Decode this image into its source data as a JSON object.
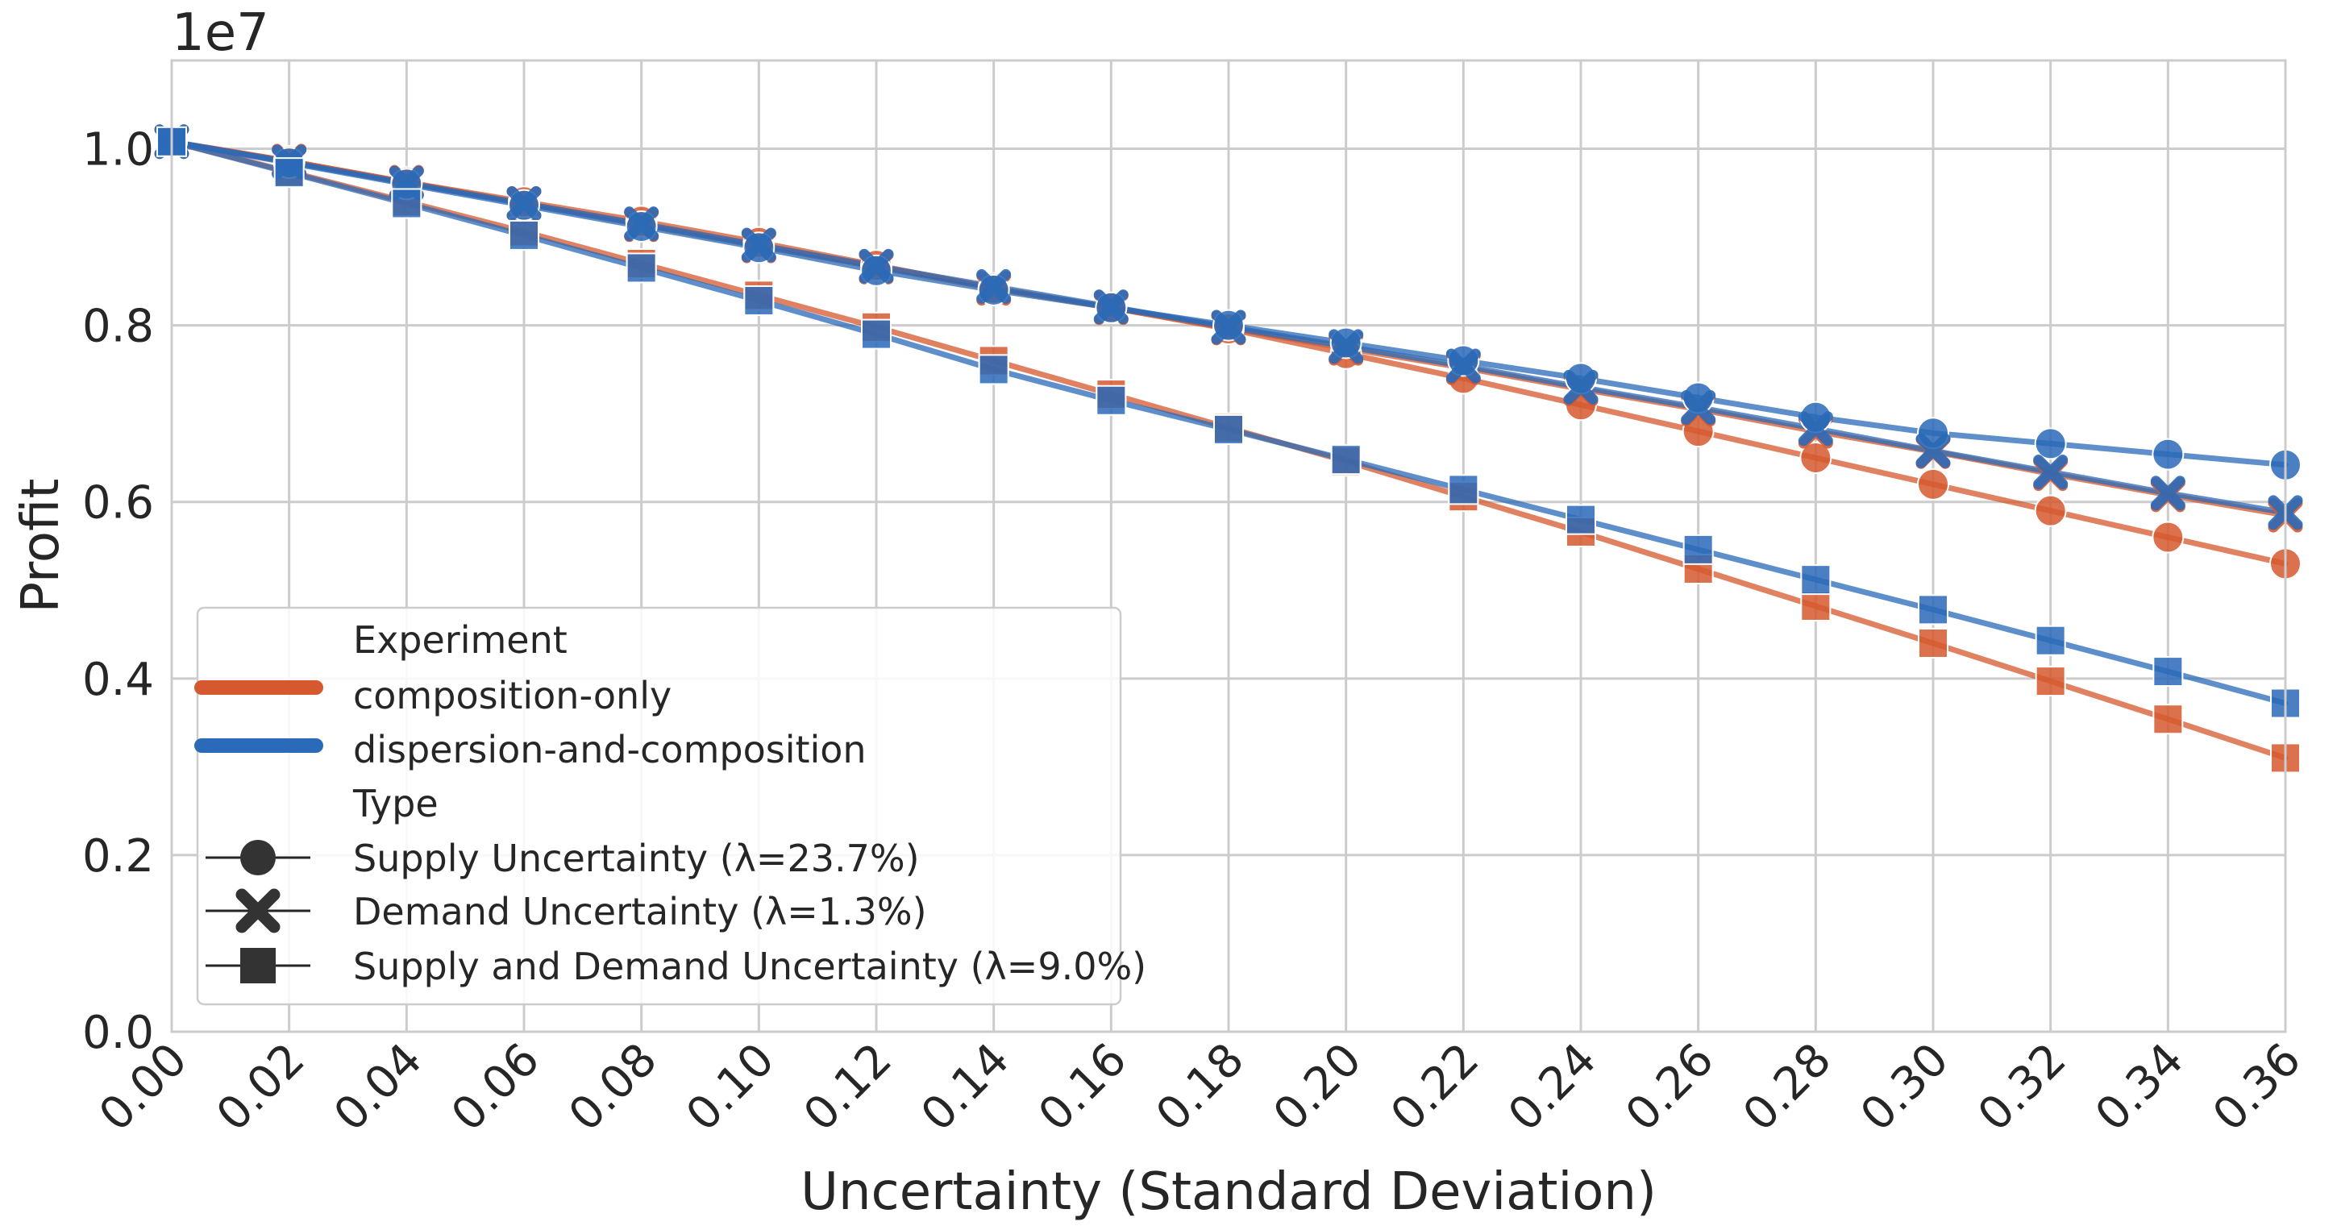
{
  "chart_data": {
    "type": "line",
    "title": "",
    "xlabel": "Uncertainty (Standard Deviation)",
    "ylabel": "Profit",
    "y_multiplier": "1e7",
    "xlim": [
      0.0,
      0.36
    ],
    "ylim": [
      0.0,
      1.1
    ],
    "x_ticks": [
      "0.00",
      "0.02",
      "0.04",
      "0.06",
      "0.08",
      "0.10",
      "0.12",
      "0.14",
      "0.16",
      "0.18",
      "0.20",
      "0.22",
      "0.24",
      "0.26",
      "0.28",
      "0.30",
      "0.32",
      "0.34",
      "0.36"
    ],
    "y_ticks": [
      "0.0",
      "0.2",
      "0.4",
      "0.6",
      "0.8",
      "1.0"
    ],
    "grid": true,
    "x": [
      0.0,
      0.02,
      0.04,
      0.06,
      0.08,
      0.1,
      0.12,
      0.14,
      0.16,
      0.18,
      0.2,
      0.22,
      0.24,
      0.26,
      0.28,
      0.3,
      0.32,
      0.34,
      0.36
    ],
    "series": [
      {
        "name": "composition-only / Supply Uncertainty (λ=23.7%)",
        "experiment": "composition-only",
        "type": "Supply Uncertainty (λ=23.7%)",
        "color": "#d6582e",
        "marker": "circle",
        "values": [
          1.008,
          0.986,
          0.962,
          0.94,
          0.918,
          0.894,
          0.868,
          0.842,
          0.82,
          0.796,
          0.768,
          0.74,
          0.71,
          0.68,
          0.65,
          0.62,
          0.59,
          0.56,
          0.53
        ]
      },
      {
        "name": "composition-only / Demand Uncertainty (λ=1.3%)",
        "experiment": "composition-only",
        "type": "Demand Uncertainty (λ=1.3%)",
        "color": "#d6582e",
        "marker": "x",
        "values": [
          1.008,
          0.986,
          0.962,
          0.938,
          0.914,
          0.89,
          0.866,
          0.842,
          0.82,
          0.797,
          0.774,
          0.752,
          0.728,
          0.705,
          0.68,
          0.657,
          0.632,
          0.608,
          0.585
        ]
      },
      {
        "name": "composition-only / Supply and Demand Uncertainty (λ=9.0%)",
        "experiment": "composition-only",
        "type": "Supply and Demand Uncertainty (λ=9.0%)",
        "color": "#d6582e",
        "marker": "square",
        "values": [
          1.008,
          0.974,
          0.94,
          0.906,
          0.87,
          0.834,
          0.798,
          0.76,
          0.722,
          0.684,
          0.646,
          0.606,
          0.566,
          0.524,
          0.482,
          0.44,
          0.397,
          0.354,
          0.31
        ]
      },
      {
        "name": "dispersion-and-composition / Supply Uncertainty (λ=23.7%)",
        "experiment": "dispersion-and-composition",
        "type": "Supply Uncertainty (λ=23.7%)",
        "color": "#2a6ab8",
        "marker": "circle",
        "values": [
          1.008,
          0.984,
          0.96,
          0.936,
          0.912,
          0.888,
          0.862,
          0.84,
          0.82,
          0.8,
          0.78,
          0.76,
          0.74,
          0.718,
          0.696,
          0.678,
          0.666,
          0.654,
          0.642
        ]
      },
      {
        "name": "dispersion-and-composition / Demand Uncertainty (λ=1.3%)",
        "experiment": "dispersion-and-composition",
        "type": "Demand Uncertainty (λ=1.3%)",
        "color": "#2a6ab8",
        "marker": "x",
        "values": [
          1.008,
          0.985,
          0.961,
          0.938,
          0.915,
          0.891,
          0.867,
          0.844,
          0.821,
          0.798,
          0.776,
          0.754,
          0.73,
          0.707,
          0.683,
          0.658,
          0.634,
          0.61,
          0.588
        ]
      },
      {
        "name": "dispersion-and-composition / Supply and Demand Uncertainty (λ=9.0%)",
        "experiment": "dispersion-and-composition",
        "type": "Supply and Demand Uncertainty (λ=9.0%)",
        "color": "#2a6ab8",
        "marker": "square",
        "values": [
          1.008,
          0.973,
          0.938,
          0.902,
          0.865,
          0.828,
          0.79,
          0.75,
          0.715,
          0.682,
          0.648,
          0.614,
          0.58,
          0.546,
          0.512,
          0.478,
          0.443,
          0.408,
          0.372
        ]
      }
    ],
    "legend": {
      "position": "lower-left",
      "experiment_title": "Experiment",
      "experiments": [
        {
          "label": "composition-only",
          "color": "#d6582e"
        },
        {
          "label": "dispersion-and-composition",
          "color": "#2a6ab8"
        }
      ],
      "type_title": "Type",
      "types": [
        {
          "label": "Supply Uncertainty (λ=23.7%)",
          "marker": "circle"
        },
        {
          "label": "Demand Uncertainty (λ=1.3%)",
          "marker": "x"
        },
        {
          "label": "Supply and Demand Uncertainty (λ=9.0%)",
          "marker": "square"
        }
      ]
    }
  }
}
